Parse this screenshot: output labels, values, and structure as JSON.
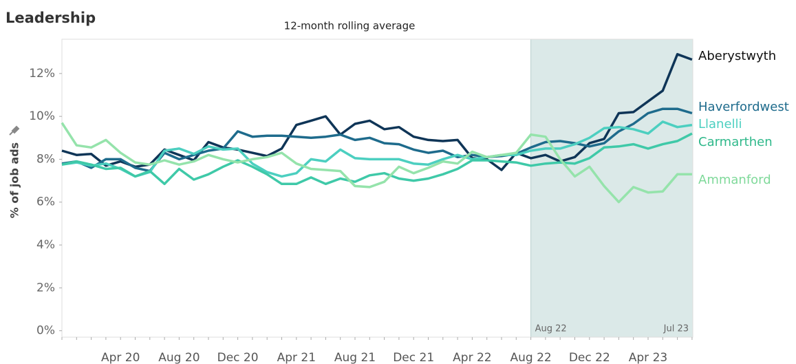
{
  "chart_data": {
    "type": "line",
    "title": "Leadership",
    "subtitle": "12-month rolling average",
    "y_label": "% of job ads",
    "categories": [
      null,
      null,
      null,
      null,
      "Apr 20",
      null,
      null,
      null,
      "Aug 20",
      null,
      null,
      null,
      "Dec 20",
      null,
      null,
      null,
      "Apr 21",
      null,
      null,
      null,
      "Aug 21",
      null,
      null,
      null,
      "Dec 21",
      null,
      null,
      null,
      "Apr 22",
      null,
      null,
      null,
      "Aug 22",
      null,
      null,
      null,
      "Dec 22",
      null,
      null,
      null,
      "Apr 23",
      null,
      null,
      null
    ],
    "ylim": [
      -0.3,
      13.6
    ],
    "yticks": [
      {
        "value": 0,
        "label": "0%"
      },
      {
        "value": 2,
        "label": "2%"
      },
      {
        "value": 4,
        "label": "4%"
      },
      {
        "value": 6,
        "label": "6%"
      },
      {
        "value": 8,
        "label": "8%"
      },
      {
        "value": 10,
        "label": "10%"
      },
      {
        "value": 12,
        "label": "12%"
      }
    ],
    "grid": false,
    "shaded_region": {
      "start": "Aug 22",
      "end": "Jul 23",
      "color": "#dbe9e8"
    },
    "series": [
      {
        "name": "Aberystwyth",
        "color": "#0f3557",
        "label_color": "#111111",
        "values": [
          8.4,
          8.2,
          8.25,
          7.7,
          7.9,
          7.65,
          7.75,
          8.45,
          8.2,
          7.95,
          8.8,
          8.55,
          8.45,
          8.3,
          8.15,
          8.5,
          9.6,
          9.8,
          10.0,
          9.15,
          9.65,
          9.8,
          9.4,
          9.5,
          9.05,
          8.9,
          8.85,
          8.9,
          8.05,
          8.0,
          7.5,
          8.3,
          8.05,
          8.2,
          7.9,
          8.1,
          8.75,
          8.95,
          10.15,
          10.2,
          10.7,
          11.2,
          12.9,
          12.65
        ]
      },
      {
        "name": "Haverfordwest",
        "color": "#1e6b8c",
        "label_color": "#1e6b8c",
        "values": [
          7.8,
          7.9,
          7.6,
          8.0,
          8.0,
          7.6,
          7.45,
          8.3,
          8.0,
          8.2,
          8.4,
          8.5,
          9.3,
          9.05,
          9.1,
          9.1,
          9.05,
          9.0,
          9.05,
          9.15,
          8.9,
          9.0,
          8.75,
          8.7,
          8.45,
          8.3,
          8.4,
          8.1,
          8.2,
          8.1,
          8.15,
          8.25,
          8.55,
          8.8,
          8.85,
          8.75,
          8.6,
          8.75,
          9.3,
          9.65,
          10.15,
          10.35,
          10.35,
          10.15
        ]
      },
      {
        "name": "Llanelli",
        "color": "#4ccfc0",
        "label_color": "#4ccfc0",
        "values": [
          7.75,
          7.85,
          7.7,
          7.8,
          7.55,
          7.2,
          7.4,
          8.4,
          8.5,
          8.25,
          8.6,
          8.45,
          8.5,
          7.8,
          7.4,
          7.2,
          7.35,
          8.0,
          7.9,
          8.45,
          8.05,
          8.0,
          8.0,
          8.0,
          7.8,
          7.75,
          8.0,
          8.2,
          8.0,
          8.1,
          8.2,
          8.2,
          8.4,
          8.5,
          8.5,
          8.7,
          9.0,
          9.45,
          9.5,
          9.4,
          9.2,
          9.75,
          9.5,
          9.6
        ]
      },
      {
        "name": "Carmarthen",
        "color": "#3fc9a8",
        "label_color": "#2eb88a",
        "values": [
          7.75,
          7.9,
          7.75,
          7.55,
          7.6,
          7.2,
          7.45,
          6.85,
          7.55,
          7.05,
          7.3,
          7.65,
          7.95,
          7.65,
          7.3,
          6.85,
          6.85,
          7.15,
          6.85,
          7.1,
          6.95,
          7.25,
          7.35,
          7.1,
          7.0,
          7.1,
          7.3,
          7.55,
          7.95,
          7.95,
          7.9,
          7.85,
          7.7,
          7.8,
          7.85,
          7.8,
          8.05,
          8.55,
          8.6,
          8.7,
          8.5,
          8.7,
          8.85,
          9.2
        ]
      },
      {
        "name": "Ammanford",
        "color": "#95e3ab",
        "label_color": "#7fd99a",
        "values": [
          9.7,
          8.65,
          8.55,
          8.9,
          8.3,
          7.85,
          7.75,
          7.95,
          7.75,
          7.9,
          8.2,
          8.0,
          7.85,
          8.0,
          8.1,
          8.3,
          7.8,
          7.55,
          7.5,
          7.45,
          6.75,
          6.7,
          6.95,
          7.65,
          7.35,
          7.6,
          7.9,
          7.8,
          8.35,
          8.1,
          8.2,
          8.3,
          9.15,
          9.05,
          8.0,
          7.2,
          7.65,
          6.75,
          6.0,
          6.7,
          6.45,
          6.5,
          7.3,
          7.3
        ]
      }
    ]
  }
}
